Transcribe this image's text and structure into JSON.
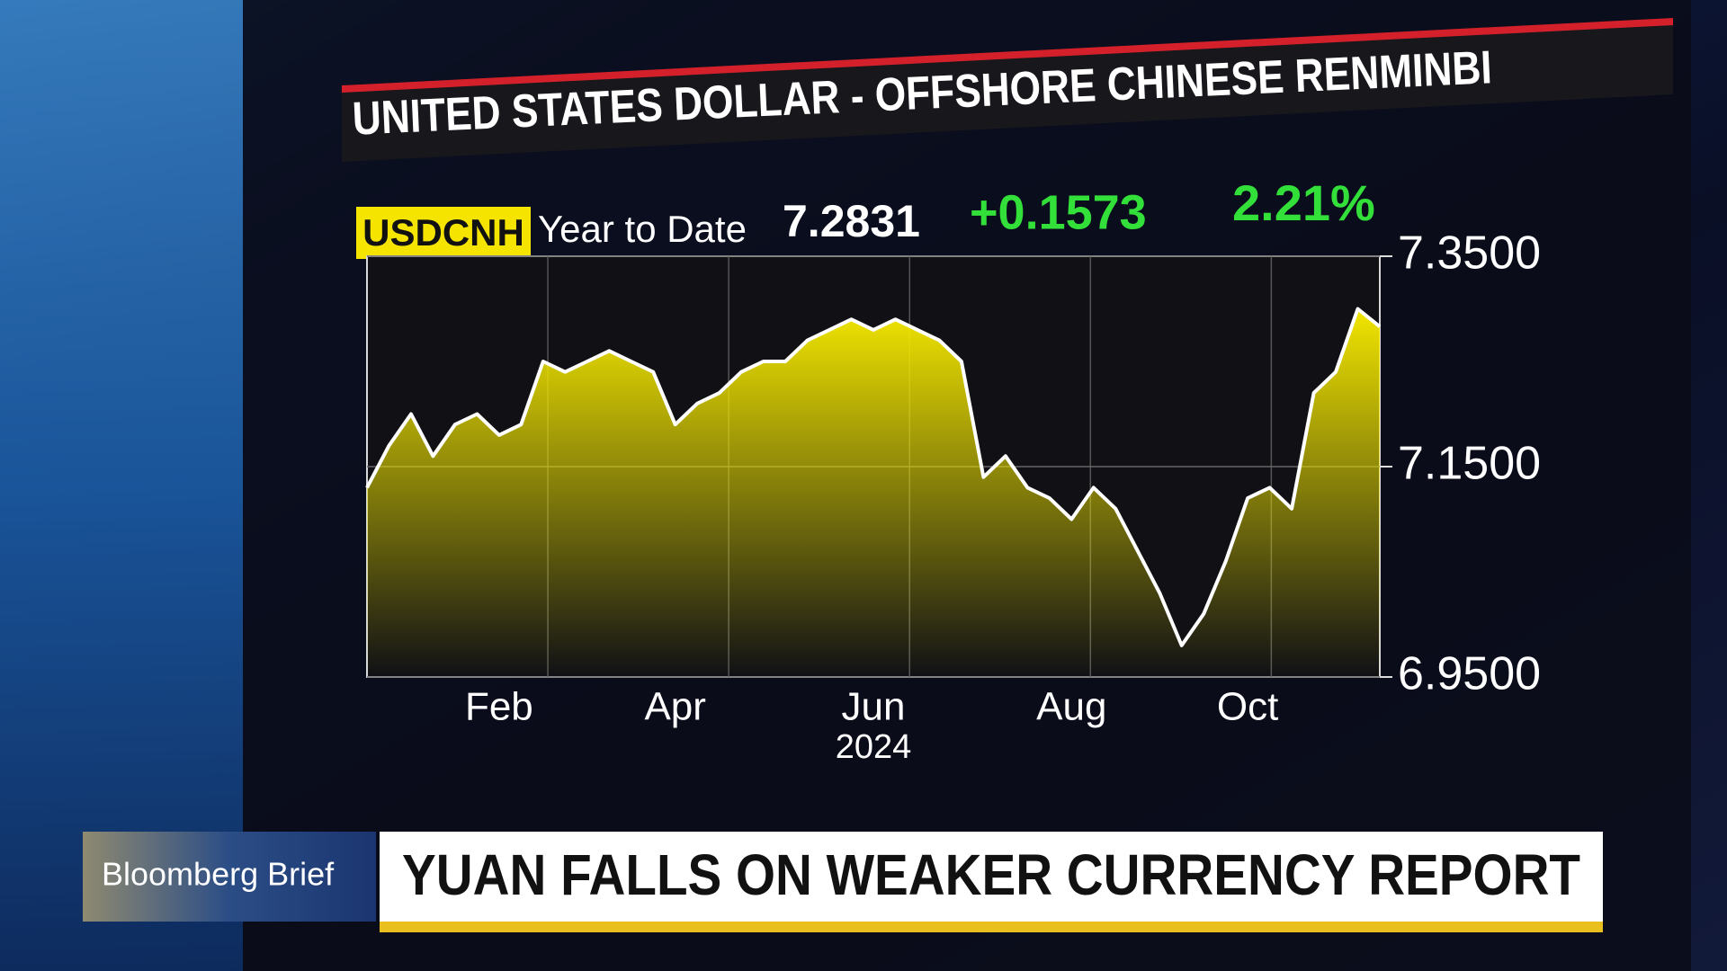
{
  "chart_data": {
    "type": "area",
    "title": "UNITED STATES DOLLAR - OFFSHORE CHINESE RENMINBI",
    "ticker": "USDCNH",
    "period": "Year to Date",
    "last": "7.2831",
    "change": "+0.1573",
    "change_pct": "2.21%",
    "xlabel": "2024",
    "categories": [
      null,
      null,
      null,
      null,
      null,
      null,
      "Feb",
      null,
      null,
      null,
      null,
      null,
      null,
      null,
      "Apr",
      null,
      null,
      null,
      null,
      null,
      null,
      null,
      null,
      "Jun",
      null,
      null,
      null,
      null,
      null,
      null,
      null,
      null,
      "Aug",
      null,
      null,
      null,
      null,
      null,
      null,
      null,
      "Oct",
      null,
      null,
      null,
      null,
      null,
      null
    ],
    "values": [
      7.13,
      7.17,
      7.2,
      7.16,
      7.19,
      7.2,
      7.18,
      7.19,
      7.25,
      7.24,
      7.25,
      7.26,
      7.25,
      7.24,
      7.19,
      7.21,
      7.22,
      7.24,
      7.25,
      7.25,
      7.27,
      7.28,
      7.29,
      7.28,
      7.29,
      7.28,
      7.27,
      7.25,
      7.14,
      7.16,
      7.13,
      7.12,
      7.1,
      7.13,
      7.11,
      7.07,
      7.03,
      6.98,
      7.01,
      7.06,
      7.12,
      7.13,
      7.11,
      7.22,
      7.24,
      7.3,
      7.2831
    ],
    "color": "#f2e600",
    "line_color": "#ffffff",
    "ylim": [
      6.95,
      7.35
    ],
    "yticks": [
      {
        "value": 6.95,
        "label": "6.9500"
      },
      {
        "value": 7.15,
        "label": "7.1500"
      },
      {
        "value": 7.35,
        "label": "7.3500"
      }
    ],
    "grid": true
  },
  "lower_third": {
    "show": "Bloomberg Brief",
    "headline": "YUAN FALLS ON WEAKER CURRENCY REPORT"
  }
}
